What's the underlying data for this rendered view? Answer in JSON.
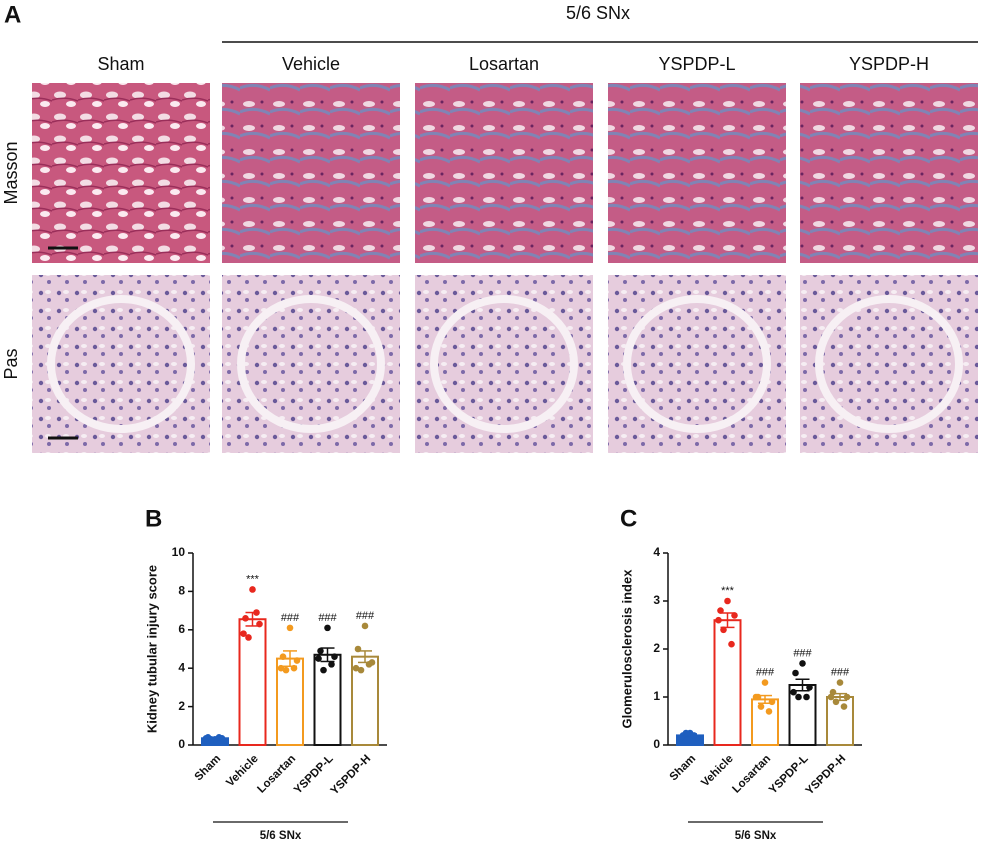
{
  "panel_a": {
    "label": "A",
    "group_label": "5/6 SNx",
    "columns": [
      "Sham",
      "Vehicle",
      "Losartan",
      "YSPDP-L",
      "YSPDP-H"
    ],
    "rows": [
      "Masson",
      "Pas"
    ]
  },
  "chart_data": [
    {
      "type": "bar",
      "panel_label": "B",
      "ylabel": "Kidney tubular injury score",
      "group_label": "5/6 SNx",
      "categories": [
        "Sham",
        "Vehicle",
        "Losartan",
        "YSPDP-L",
        "YSPDP-H"
      ],
      "colors": [
        "#1f5fbf",
        "#e8281e",
        "#f39a1f",
        "#111111",
        "#a8893a"
      ],
      "values": [
        0.35,
        6.55,
        4.5,
        4.7,
        4.6
      ],
      "errors": [
        0.05,
        0.35,
        0.4,
        0.35,
        0.3
      ],
      "points": [
        [
          0.3,
          0.4,
          0.35,
          0.3,
          0.4,
          0.35
        ],
        [
          8.1,
          6.6,
          6.3,
          5.6,
          6.9,
          5.8
        ],
        [
          6.1,
          4.6,
          4.4,
          3.9,
          4.0,
          4.0
        ],
        [
          6.1,
          4.9,
          4.6,
          3.9,
          4.2,
          4.5
        ],
        [
          6.2,
          5.0,
          4.3,
          3.9,
          4.2,
          4.0
        ]
      ],
      "annotations": [
        null,
        "***",
        "###",
        "###",
        "###"
      ],
      "ylim": [
        0,
        10
      ],
      "yticks": [
        0,
        2,
        4,
        6,
        8,
        10
      ]
    },
    {
      "type": "bar",
      "panel_label": "C",
      "ylabel": "Glomerulosclerosis index",
      "group_label": "5/6 SNx",
      "categories": [
        "Sham",
        "Vehicle",
        "Losartan",
        "YSPDP-L",
        "YSPDP-H"
      ],
      "colors": [
        "#1f5fbf",
        "#e8281e",
        "#f39a1f",
        "#111111",
        "#a8893a"
      ],
      "values": [
        0.2,
        2.6,
        0.95,
        1.25,
        1.0
      ],
      "errors": [
        0.03,
        0.15,
        0.08,
        0.12,
        0.07
      ],
      "points": [
        [
          0.25,
          0.2,
          0.15,
          0.25,
          0.2,
          0.15
        ],
        [
          3.0,
          2.8,
          2.7,
          2.4,
          2.1,
          2.6
        ],
        [
          1.3,
          1.0,
          0.9,
          0.8,
          0.7,
          1.0
        ],
        [
          1.7,
          1.5,
          1.2,
          1.0,
          1.0,
          1.1
        ],
        [
          1.3,
          1.1,
          1.0,
          0.9,
          0.8,
          1.0
        ]
      ],
      "annotations": [
        null,
        "***",
        "###",
        "###",
        "###"
      ],
      "ylim": [
        0,
        4
      ],
      "yticks": [
        0,
        1,
        2,
        3,
        4
      ]
    }
  ]
}
